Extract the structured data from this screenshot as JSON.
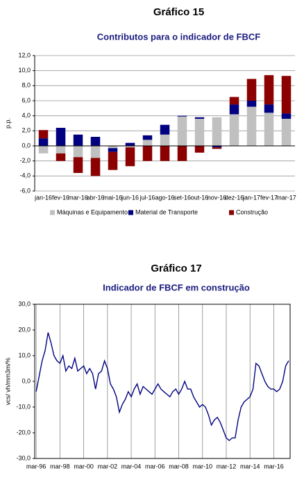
{
  "chart_data": [
    {
      "type": "bar",
      "stacked": true,
      "title": "Gráfico 15",
      "subtitle": "Contributos para o indicador de FBCF",
      "y_label": "p.p.",
      "categories": [
        "jan-16",
        "fev-16",
        "mar-16",
        "abr-16",
        "mai-16",
        "jun-16",
        "jul-16",
        "ago-16",
        "set-16",
        "out-16",
        "nov-16",
        "dez-16",
        "jan-17",
        "fev-17",
        "mar-17"
      ],
      "series": [
        {
          "name": "Máquinas e Equipamentos",
          "color": "#c0c0c0",
          "values": [
            -1.0,
            -1.0,
            -1.5,
            -1.6,
            -0.3,
            -0.2,
            0.8,
            1.5,
            3.9,
            3.6,
            3.8,
            4.2,
            5.2,
            4.4,
            3.6
          ]
        },
        {
          "name": "Material de Transporte",
          "color": "#000080",
          "values": [
            1.0,
            2.4,
            1.5,
            1.2,
            -0.5,
            0.4,
            0.6,
            1.3,
            0.1,
            0.2,
            -0.2,
            1.3,
            0.8,
            1.1,
            0.7
          ]
        },
        {
          "name": "Construção",
          "color": "#8b0000",
          "values": [
            1.1,
            -1.0,
            -2.1,
            -2.4,
            -2.4,
            -2.5,
            -2.0,
            -2.0,
            -2.0,
            -0.9,
            -0.2,
            1.0,
            2.9,
            3.9,
            5.0
          ]
        }
      ],
      "ylim": [
        -6,
        12
      ],
      "yticks": [
        {
          "value": -6,
          "label": "-6,0"
        },
        {
          "value": -4,
          "label": "-4,0"
        },
        {
          "value": -2,
          "label": "-2,0"
        },
        {
          "value": 0,
          "label": "0,0"
        },
        {
          "value": 2,
          "label": "2,0"
        },
        {
          "value": 4,
          "label": "4,0"
        },
        {
          "value": 6,
          "label": "6,0"
        },
        {
          "value": 8,
          "label": "8,0"
        },
        {
          "value": 10,
          "label": "10,0"
        },
        {
          "value": 12,
          "label": "12,0"
        }
      ],
      "grid": true,
      "legend": "bottom"
    },
    {
      "type": "line",
      "title": "Gráfico 17",
      "subtitle": "Indicador de FBCF em construção",
      "y_label": "vcs/ vh/mm3m/%",
      "color": "#000080",
      "categories": [
        "mar-96",
        null,
        null,
        null,
        null,
        null,
        null,
        null,
        "mar-98",
        null,
        null,
        null,
        null,
        null,
        null,
        null,
        "mar-00",
        null,
        null,
        null,
        null,
        null,
        null,
        null,
        "mar-02",
        null,
        null,
        null,
        null,
        null,
        null,
        null,
        "mar-04",
        null,
        null,
        null,
        null,
        null,
        null,
        null,
        "mar-06",
        null,
        null,
        null,
        null,
        null,
        null,
        null,
        "mar-08",
        null,
        null,
        null,
        null,
        null,
        null,
        null,
        "mar-10",
        null,
        null,
        null,
        null,
        null,
        null,
        null,
        "mar-12",
        null,
        null,
        null,
        null,
        null,
        null,
        null,
        "mar-14",
        null,
        null,
        null,
        null,
        null,
        null,
        null,
        "mar-16",
        null,
        null,
        null,
        null,
        null
      ],
      "values": [
        -4,
        2,
        8,
        12,
        19,
        15,
        10,
        8,
        7,
        10,
        4,
        6,
        5,
        9,
        4,
        5,
        6,
        3,
        5,
        3,
        -3,
        3,
        4,
        8,
        5,
        -1,
        -3,
        -6,
        -12,
        -9,
        -7,
        -4,
        -6,
        -3,
        -1,
        -5,
        -2,
        -3,
        -4,
        -5,
        -3,
        -1,
        -3,
        -4,
        -5,
        -6,
        -4,
        -3,
        -5,
        -3,
        0,
        -3,
        -3,
        -6,
        -8,
        -10,
        -9,
        -10,
        -13,
        -17,
        -15,
        -14,
        -16,
        -19,
        -22,
        -23,
        -22,
        -22,
        -15,
        -10,
        -8,
        -7,
        -6,
        -3,
        7,
        6,
        3,
        0,
        -2,
        -3,
        -3,
        -4,
        -3,
        0,
        6,
        8
      ],
      "ylim": [
        -30,
        30
      ],
      "yticks": [
        {
          "value": -30,
          "label": "-30,0"
        },
        {
          "value": -20,
          "label": "-20,0"
        },
        {
          "value": -10,
          "label": "-10,0"
        },
        {
          "value": 0,
          "label": "0,0"
        },
        {
          "value": 10,
          "label": "10,0"
        },
        {
          "value": 20,
          "label": "20,0"
        },
        {
          "value": 30,
          "label": "30,0"
        }
      ],
      "grid": true
    }
  ]
}
